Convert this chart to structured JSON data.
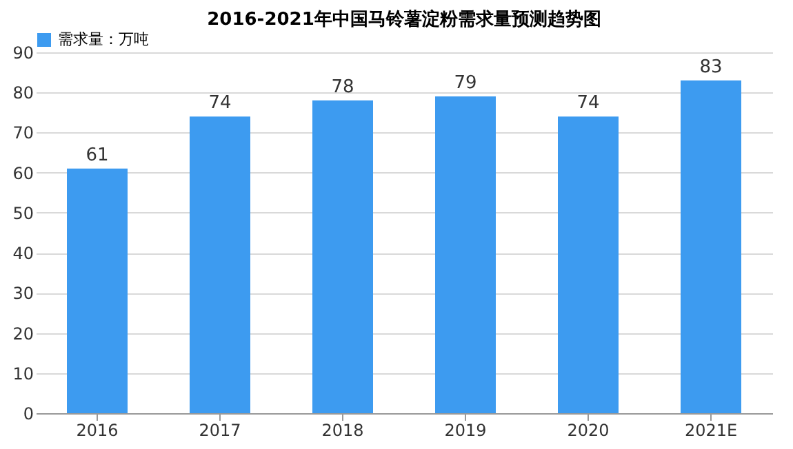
{
  "chart_data": {
    "type": "bar",
    "title": "2016-2021年中国马铃薯淀粉需求量预测趋势图",
    "categories": [
      "2016",
      "2017",
      "2018",
      "2019",
      "2020",
      "2021E"
    ],
    "series": [
      {
        "name": "需求量：万吨",
        "color": "#3d9bf0",
        "values": [
          61,
          74,
          78,
          79,
          74,
          83
        ]
      }
    ],
    "ylim": [
      0,
      90
    ],
    "yticks": [
      0,
      10,
      20,
      30,
      40,
      50,
      60,
      70,
      80,
      90
    ],
    "grid": "y",
    "legend": "top",
    "data_labels": true
  }
}
